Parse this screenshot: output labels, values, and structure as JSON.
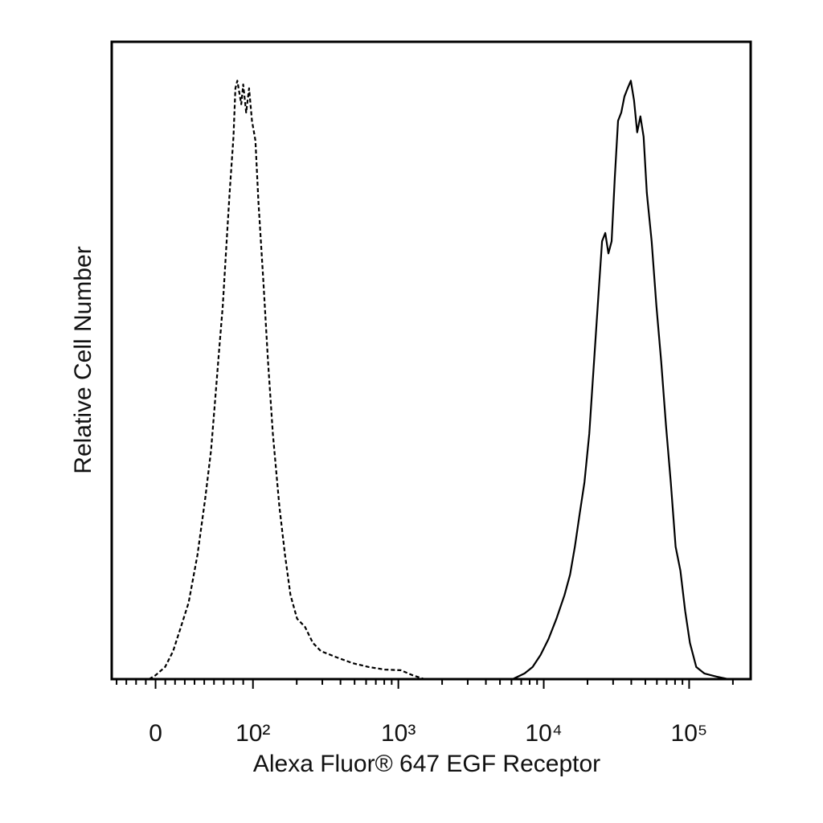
{
  "chart_data": {
    "type": "line",
    "xlabel": "Alexa Fluor® 647 EGF Receptor",
    "ylabel": "Relative Cell Number",
    "xscale": "symlog",
    "linthresh": 100,
    "xlim": [
      -45,
      265000
    ],
    "ylim": [
      0,
      100
    ],
    "xticks": [
      0,
      {
        "value": 100,
        "label": "10²"
      },
      {
        "value": 1000,
        "label": "10³"
      },
      {
        "value": 10000,
        "label": "10⁴"
      },
      {
        "value": 100000,
        "label": "10⁵"
      }
    ],
    "xminorticks": [
      -40,
      -30,
      -20,
      -10,
      10,
      20,
      30,
      40,
      50,
      60,
      70,
      80,
      90,
      200,
      300,
      400,
      500,
      600,
      700,
      800,
      900,
      2000,
      3000,
      4000,
      5000,
      6000,
      7000,
      8000,
      9000,
      20000,
      30000,
      40000,
      50000,
      60000,
      70000,
      80000,
      90000,
      200000
    ],
    "series": [
      {
        "color": "#000000",
        "dashed": true,
        "x": [
          -6.6,
          0,
          9.8,
          18,
          26,
          34,
          43,
          51,
          57,
          61,
          65,
          69,
          73,
          76,
          80,
          82,
          84,
          88,
          90,
          93,
          96,
          99,
          104,
          109,
          118,
          127,
          137,
          152,
          166,
          181,
          201,
          228,
          258,
          293,
          378,
          486,
          626,
          807,
          1039,
          1255,
          1518,
          185800
        ],
        "values": [
          0,
          0.6,
          1.9,
          4.4,
          8.2,
          12,
          19.5,
          28.4,
          35.9,
          43.5,
          51.1,
          58.6,
          68.7,
          76.3,
          85.1,
          92.7,
          93.9,
          90.2,
          93.3,
          88.9,
          92.7,
          87.6,
          84.5,
          75,
          62.4,
          49.8,
          38.5,
          27.1,
          19.5,
          13.2,
          9.5,
          8.2,
          5.7,
          4.4,
          3.4,
          2.5,
          1.9,
          1.5,
          1.4,
          0.6,
          0,
          0
        ]
      },
      {
        "color": "#000000",
        "dashed": false,
        "x": [
          6110,
          7380,
          8380,
          9510,
          10790,
          12240,
          13900,
          15180,
          16370,
          17660,
          19050,
          20560,
          21630,
          22750,
          23930,
          25180,
          26490,
          27860,
          29310,
          30830,
          32430,
          34120,
          35890,
          37760,
          39720,
          41780,
          43950,
          46240,
          48640,
          51170,
          55200,
          59570,
          64270,
          69340,
          74800,
          80700,
          87100,
          93970,
          101200,
          111900,
          127100,
          153800,
          185800
        ],
        "values": [
          0,
          0.9,
          1.9,
          3.8,
          6.3,
          9.5,
          13.2,
          16.4,
          20.8,
          25.9,
          30.9,
          38.5,
          46,
          53.6,
          61.2,
          68.7,
          70,
          66.8,
          68.7,
          78.8,
          87.6,
          88.9,
          91.4,
          92.7,
          93.9,
          90.8,
          85.8,
          88.3,
          85.1,
          76.3,
          68.7,
          58.6,
          49.8,
          39.7,
          30.9,
          20.8,
          17,
          10.7,
          5.7,
          1.9,
          0.9,
          0.4,
          0
        ]
      }
    ]
  }
}
